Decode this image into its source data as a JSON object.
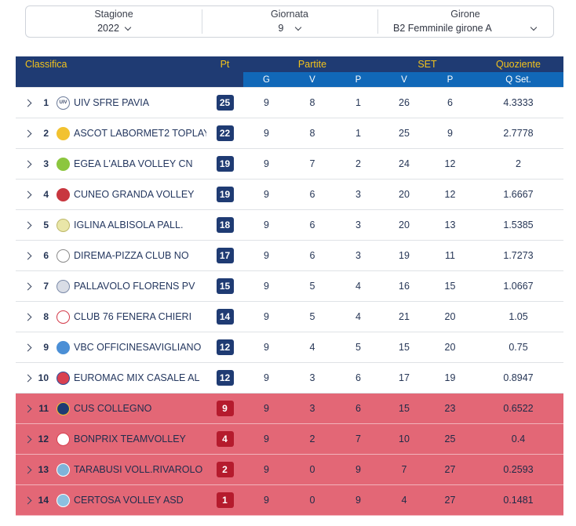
{
  "filters": {
    "stagione": {
      "label": "Stagione",
      "value": "2022"
    },
    "giornata": {
      "label": "Giornata",
      "value": "9"
    },
    "girone": {
      "label": "Girone",
      "value": "B2 Femminile girone A"
    }
  },
  "table": {
    "headers": {
      "classifica": "Classifica",
      "pt": "Pt",
      "partite": "Partite",
      "set": "SET",
      "quoziente": "Quoziente",
      "g": "G",
      "v": "V",
      "p": "P",
      "set_v": "V",
      "set_p": "P",
      "qset": "Q Set."
    },
    "rows": [
      {
        "pos": "1",
        "team": "UIV SFRE PAVIA",
        "pt": "25",
        "g": "9",
        "v": "8",
        "p": "1",
        "sv": "26",
        "sp": "6",
        "q": "4.3333",
        "logo_color": "#ffffff",
        "logo_border": "#6b7a99",
        "logo_text": "UIV"
      },
      {
        "pos": "2",
        "team": "ASCOT LABORMET2 TOPLAY",
        "pt": "22",
        "g": "9",
        "v": "8",
        "p": "1",
        "sv": "25",
        "sp": "9",
        "q": "2.7778",
        "logo_color": "#f2c230",
        "logo_border": "#f2c230",
        "logo_text": ""
      },
      {
        "pos": "3",
        "team": "EGEA L'ALBA VOLLEY CN",
        "pt": "19",
        "g": "9",
        "v": "7",
        "p": "2",
        "sv": "24",
        "sp": "12",
        "q": "2",
        "logo_color": "#8cc63f",
        "logo_border": "#8cc63f",
        "logo_text": ""
      },
      {
        "pos": "4",
        "team": "CUNEO GRANDA VOLLEY",
        "pt": "19",
        "g": "9",
        "v": "6",
        "p": "3",
        "sv": "20",
        "sp": "12",
        "q": "1.6667",
        "logo_color": "#c8373f",
        "logo_border": "#c8373f",
        "logo_text": ""
      },
      {
        "pos": "5",
        "team": "IGLINA ALBISOLA PALL.",
        "pt": "18",
        "g": "9",
        "v": "6",
        "p": "3",
        "sv": "20",
        "sp": "13",
        "q": "1.5385",
        "logo_color": "#e9e6a8",
        "logo_border": "#bdb86a",
        "logo_text": ""
      },
      {
        "pos": "6",
        "team": "DIREMA-PIZZA CLUB NO",
        "pt": "17",
        "g": "9",
        "v": "6",
        "p": "3",
        "sv": "19",
        "sp": "11",
        "q": "1.7273",
        "logo_color": "#ffffff",
        "logo_border": "#8a8a8a",
        "logo_text": ""
      },
      {
        "pos": "7",
        "team": "PALLAVOLO FLORENS PV",
        "pt": "15",
        "g": "9",
        "v": "5",
        "p": "4",
        "sv": "16",
        "sp": "15",
        "q": "1.0667",
        "logo_color": "#d9dde6",
        "logo_border": "#7b8aa8",
        "logo_text": ""
      },
      {
        "pos": "8",
        "team": "CLUB 76 FENERA CHIERI",
        "pt": "14",
        "g": "9",
        "v": "5",
        "p": "4",
        "sv": "21",
        "sp": "20",
        "q": "1.05",
        "logo_color": "#ffffff",
        "logo_border": "#d33a4a",
        "logo_text": ""
      },
      {
        "pos": "9",
        "team": "VBC OFFICINESAVIGLIANO",
        "pt": "12",
        "g": "9",
        "v": "4",
        "p": "5",
        "sv": "15",
        "sp": "20",
        "q": "0.75",
        "logo_color": "#4b8fd6",
        "logo_border": "#4b8fd6",
        "logo_text": ""
      },
      {
        "pos": "10",
        "team": "EUROMAC MIX CASALE AL",
        "pt": "12",
        "g": "9",
        "v": "3",
        "p": "6",
        "sv": "17",
        "sp": "19",
        "q": "0.8947",
        "logo_color": "#d94050",
        "logo_border": "#2d4f9c",
        "logo_text": ""
      },
      {
        "pos": "11",
        "team": "CUS COLLEGNO",
        "pt": "9",
        "g": "9",
        "v": "3",
        "p": "6",
        "sv": "15",
        "sp": "23",
        "q": "0.6522",
        "logo_color": "#1f3b73",
        "logo_border": "#f2c230",
        "logo_text": ""
      },
      {
        "pos": "12",
        "team": "BONPRIX TEAMVOLLEY",
        "pt": "4",
        "g": "9",
        "v": "2",
        "p": "7",
        "sv": "10",
        "sp": "25",
        "q": "0.4",
        "logo_color": "#ffffff",
        "logo_border": "#d94050",
        "logo_text": ""
      },
      {
        "pos": "13",
        "team": "TARABUSI VOLL.RIVAROLO",
        "pt": "2",
        "g": "9",
        "v": "0",
        "p": "9",
        "sv": "7",
        "sp": "27",
        "q": "0.2593",
        "logo_color": "#7fb3d9",
        "logo_border": "#ffffff",
        "logo_text": ""
      },
      {
        "pos": "14",
        "team": "CERTOSA VOLLEY ASD",
        "pt": "1",
        "g": "9",
        "v": "0",
        "p": "9",
        "sv": "4",
        "sp": "27",
        "q": "0.1481",
        "logo_color": "#8cc0e0",
        "logo_border": "#ffffff",
        "logo_text": ""
      }
    ],
    "relegation_from_pos": 11
  },
  "colors": {
    "header_dark": "#1f3b73",
    "header_blue": "#1168b8",
    "header_text": "#f3c31b",
    "relegation_row": "#e36776",
    "relegation_badge": "#b51b2d",
    "points_badge": "#1f3b73"
  }
}
